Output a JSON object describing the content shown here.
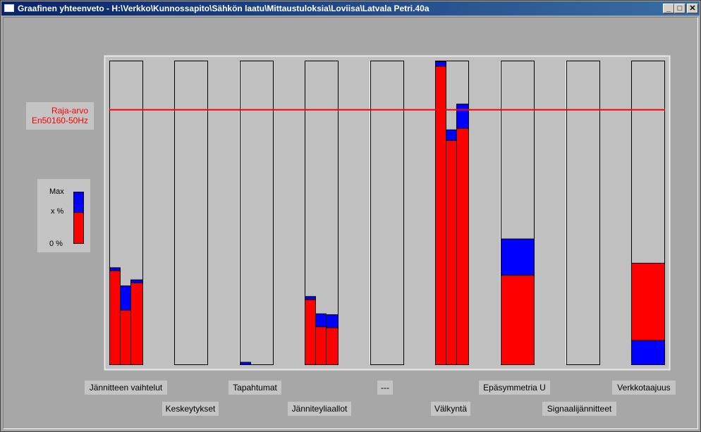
{
  "window": {
    "title": "Graafinen yhteenveto - H:\\Verkko\\Kunnossapito\\Sähkön laatu\\Mittaustuloksia\\Loviisa\\Latvala Petri.40a",
    "minimize_symbol": "_",
    "maximize_symbol": "□",
    "close_symbol": "✕"
  },
  "limit": {
    "line1": "Raja-arvo",
    "line2": "En50160-50Hz",
    "color": "#ff0000",
    "level_percent": 84
  },
  "legend": {
    "max_label": "Max",
    "x_label": "x %",
    "zero_label": "0 %",
    "max_color": "#0000ff",
    "x_color": "#ff0000"
  },
  "colors": {
    "x_percent": "#ff0000",
    "max": "#0000ff",
    "panel": "#c0c0c0"
  },
  "chart_data": {
    "type": "bar",
    "stacked": true,
    "y_unit": "percent of limit scale (0-100)",
    "limit_level": 84,
    "categories": [
      {
        "label": "Jännitteen vaihtelut",
        "bars": [
          {
            "x": 31,
            "max": 32
          },
          {
            "x": 18,
            "max": 26
          },
          {
            "x": 27,
            "max": 28
          }
        ]
      },
      {
        "label": "Keskeytykset",
        "bars": []
      },
      {
        "label": "Tapahtumat",
        "bars": [
          {
            "x": 0,
            "max": 0.8
          }
        ]
      },
      {
        "label": "Jänniteyliaallot",
        "bars": [
          {
            "x": 21.5,
            "max": 22.5
          },
          {
            "x": 12.5,
            "max": 16.8
          },
          {
            "x": 12.2,
            "max": 16.5
          }
        ]
      },
      {
        "label": "---",
        "bars": []
      },
      {
        "label": "Välkyntä",
        "bars": [
          {
            "x": 98.5,
            "max": 100
          },
          {
            "x": 74,
            "max": 77.5
          },
          {
            "x": 78,
            "max": 86
          }
        ]
      },
      {
        "label": "Epäsymmetria U",
        "bars": [
          {
            "x": 29.5,
            "max": 41.5
          }
        ]
      },
      {
        "label": "Signaalijännitteet",
        "bars": []
      },
      {
        "label": "Verkkotaajuus",
        "bars": [
          {
            "x": 8,
            "max": 33.5,
            "x_on_top": true
          }
        ]
      }
    ]
  }
}
